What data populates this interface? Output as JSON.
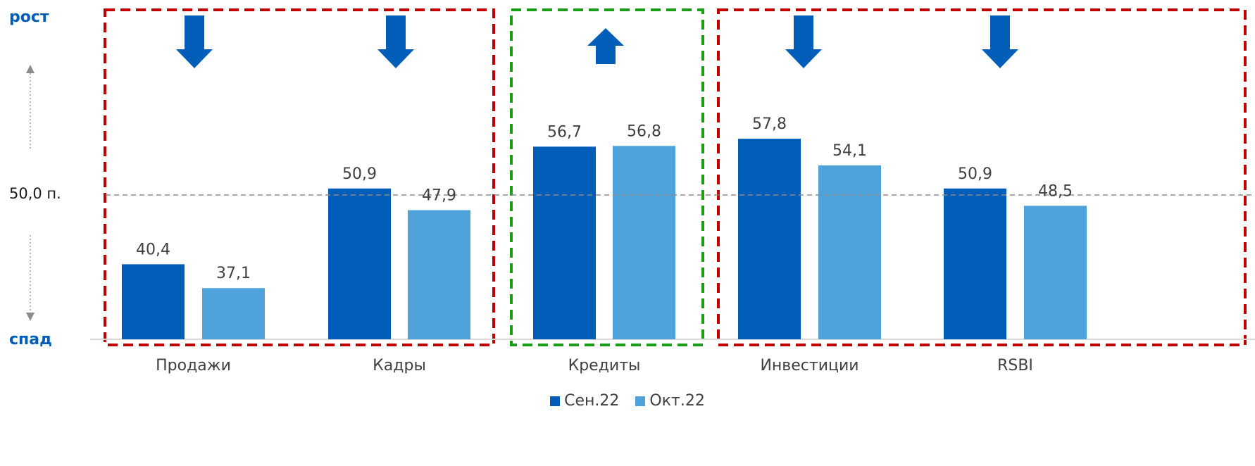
{
  "labels": {
    "growth": "рост",
    "decline": "спад",
    "reference": "50,0 п."
  },
  "colors": {
    "series_1": "#005eb8",
    "series_2": "#4fa3da",
    "arrow": "#005eb8",
    "axis_label": "#005eb8",
    "box_negative": "#c00000",
    "box_positive": "#1a9e1a",
    "reference_line": "#8c8c8c"
  },
  "chart_data": {
    "type": "bar",
    "categories": [
      "Продажи",
      "Кадры",
      "Кредиты",
      "Инвестиции",
      "RSBI"
    ],
    "series": [
      {
        "name": "Сен.22",
        "values": [
          40.4,
          50.9,
          56.7,
          57.8,
          50.9
        ],
        "labels": [
          "40,4",
          "50,9",
          "56,7",
          "57,8",
          "50,9"
        ]
      },
      {
        "name": "Окт.22",
        "values": [
          37.1,
          47.9,
          56.8,
          54.1,
          48.5
        ],
        "labels": [
          "37,1",
          "47,9",
          "56,8",
          "54,1",
          "48,5"
        ]
      }
    ],
    "reference_line": 50,
    "ylim": [
      30,
      60
    ],
    "arrows": [
      "down",
      "down",
      "up",
      "down",
      "down"
    ],
    "groups": [
      {
        "categories": [
          "Продажи",
          "Кадры"
        ],
        "style": "red-dashed"
      },
      {
        "categories": [
          "Кредиты"
        ],
        "style": "green-dashed"
      },
      {
        "categories": [
          "Инвестиции",
          "RSBI"
        ],
        "style": "red-dashed"
      }
    ],
    "legend_position": "bottom-center",
    "grid": false
  }
}
